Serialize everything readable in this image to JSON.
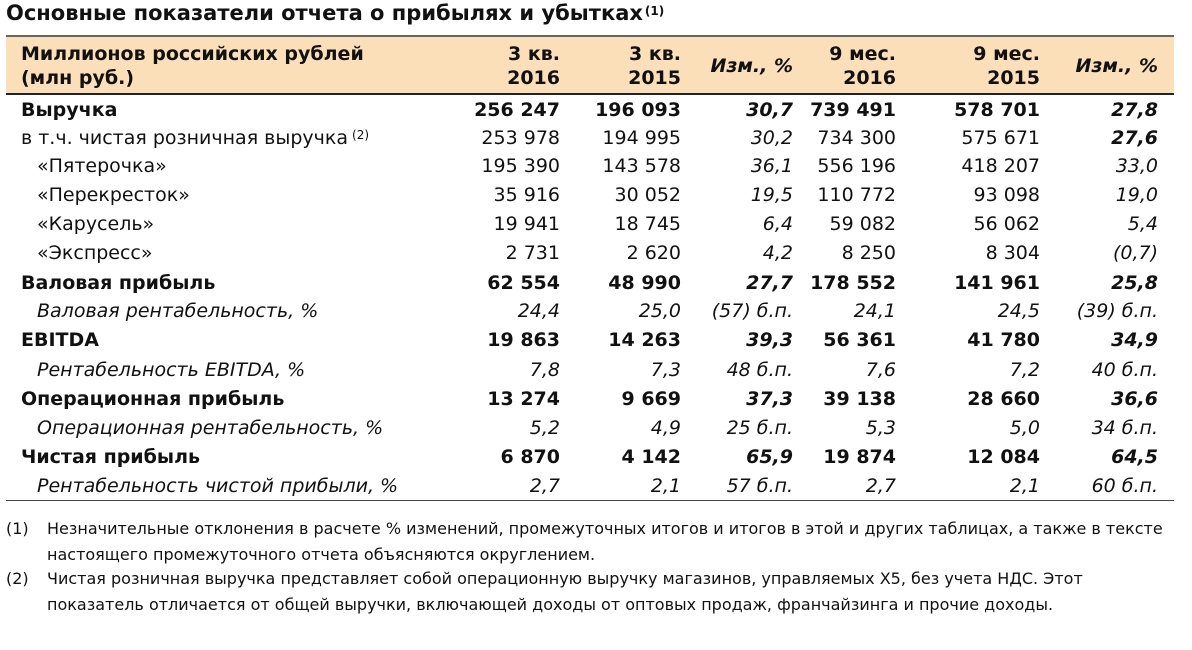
{
  "title": "Основные показатели отчета о прибылях и убытках",
  "title_note": "(1)",
  "header": {
    "label_line1": "Миллионов российских рублей",
    "label_line2": "(млн руб.)",
    "q3_2016_l1": "3 кв.",
    "q3_2016_l2": "2016",
    "q3_2015_l1": "3 кв.",
    "q3_2015_l2": "2015",
    "chg_q": "Изм., %",
    "m9_2016_l1": "9 мес.",
    "m9_2016_l2": "2016",
    "m9_2015_l1": "9 мес.",
    "m9_2015_l2": "2015",
    "chg_m": "Изм., %"
  },
  "rows": [
    {
      "label": "Выручка",
      "note": "",
      "v": [
        "256 247",
        "196 093",
        "30,7",
        "739 491",
        "578 701",
        "27,8"
      ]
    },
    {
      "label": "в т.ч. чистая розничная выручка",
      "note": "(2)",
      "v": [
        "253 978",
        "194 995",
        "30,2",
        "734 300",
        "575 671",
        "27,6"
      ]
    },
    {
      "label": "«Пятерочка»",
      "note": "",
      "v": [
        "195 390",
        "143 578",
        "36,1",
        "556 196",
        "418 207",
        "33,0"
      ]
    },
    {
      "label": "«Перекресток»",
      "note": "",
      "v": [
        "35 916",
        "30 052",
        "19,5",
        "110 772",
        "93 098",
        "19,0"
      ]
    },
    {
      "label": "«Карусель»",
      "note": "",
      "v": [
        "19 941",
        "18 745",
        "6,4",
        "59 082",
        "56 062",
        "5,4"
      ]
    },
    {
      "label": "«Экспресс»",
      "note": "",
      "v": [
        "2 731",
        "2 620",
        "4,2",
        "8 250",
        "8 304",
        "(0,7)"
      ]
    },
    {
      "label": "Валовая прибыль",
      "note": "",
      "v": [
        "62 554",
        "48 990",
        "27,7",
        "178 552",
        "141 961",
        "25,8"
      ]
    },
    {
      "label": "Валовая рентабельность, %",
      "note": "",
      "v": [
        "24,4",
        "25,0",
        "(57) б.п.",
        "24,1",
        "24,5",
        "(39) б.п."
      ]
    },
    {
      "label": "EBITDA",
      "note": "",
      "v": [
        "19 863",
        "14 263",
        "39,3",
        "56 361",
        "41 780",
        "34,9"
      ]
    },
    {
      "label": "Рентабельность EBITDA, %",
      "note": "",
      "v": [
        "7,8",
        "7,3",
        "48 б.п.",
        "7,6",
        "7,2",
        "40 б.п."
      ]
    },
    {
      "label": "Операционная прибыль",
      "note": "",
      "v": [
        "13 274",
        "9 669",
        "37,3",
        "39 138",
        "28 660",
        "36,6"
      ]
    },
    {
      "label": "Операционная рентабельность, %",
      "note": "",
      "v": [
        "5,2",
        "4,9",
        "25 б.п.",
        "5,3",
        "5,0",
        "34 б.п."
      ]
    },
    {
      "label": "Чистая прибыль",
      "note": "",
      "v": [
        "6 870",
        "4 142",
        "65,9",
        "19 874",
        "12 084",
        "64,5"
      ]
    },
    {
      "label": "Рентабельность чистой прибыли, %",
      "note": "",
      "v": [
        "2,7",
        "2,1",
        "57 б.п.",
        "2,7",
        "2,1",
        "60 б.п."
      ]
    }
  ],
  "footnotes": [
    {
      "num": "(1)",
      "text": "Незначительные отклонения в расчете % изменений, промежуточных итогов и итогов в этой и других таблицах, а также в тексте настоящего промежуточного отчета объясняются округлением."
    },
    {
      "num": "(2)",
      "text": "Чистая розничная выручка представляет собой операционную выручку магазинов, управляемых X5, без учета НДС. Этот показатель отличается от общей выручки, включающей доходы от оптовых продаж, франчайзинга и прочие доходы."
    }
  ]
}
